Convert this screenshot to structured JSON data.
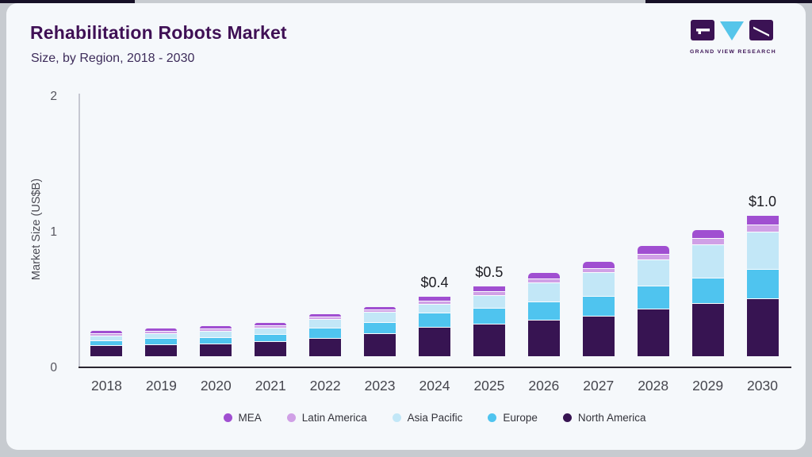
{
  "header": {
    "title": "Rehabilitation Robots Market",
    "subtitle": "Size, by Region, 2018 - 2030",
    "logo": {
      "text": "GRAND VIEW RESEARCH",
      "purple": "#3b1254",
      "cyan": "#56c5ea"
    }
  },
  "chart_data": {
    "type": "bar",
    "stacked": true,
    "title": "Rehabilitation Robots Market",
    "subtitle": "Size, by Region, 2018 - 2030",
    "xlabel": "",
    "ylabel": "Market Size (US$B)",
    "ylim": [
      0,
      2
    ],
    "yticks": [
      0,
      1,
      2
    ],
    "grid": false,
    "legend_position": "bottom",
    "units": "US$B",
    "categories": [
      "2018",
      "2019",
      "2020",
      "2021",
      "2022",
      "2023",
      "2024",
      "2025",
      "2026",
      "2027",
      "2028",
      "2029",
      "2030"
    ],
    "series": [
      {
        "name": "MEA",
        "color": "#a04fd1",
        "values": [
          0.01,
          0.009,
          0.009,
          0.01,
          0.01,
          0.014,
          0.028,
          0.035,
          0.039,
          0.049,
          0.059,
          0.056,
          0.066
        ]
      },
      {
        "name": "Latin America",
        "color": "#d0a0e6",
        "values": [
          0.01,
          0.012,
          0.012,
          0.013,
          0.014,
          0.022,
          0.024,
          0.027,
          0.027,
          0.029,
          0.039,
          0.047,
          0.051
        ]
      },
      {
        "name": "Asia Pacific",
        "color": "#c2e7f7",
        "values": [
          0.03,
          0.035,
          0.047,
          0.047,
          0.065,
          0.075,
          0.065,
          0.094,
          0.143,
          0.176,
          0.196,
          0.243,
          0.278
        ]
      },
      {
        "name": "Europe",
        "color": "#4fc4ef",
        "values": [
          0.04,
          0.042,
          0.047,
          0.055,
          0.078,
          0.08,
          0.108,
          0.118,
          0.133,
          0.143,
          0.171,
          0.192,
          0.212
        ]
      },
      {
        "name": "North America",
        "color": "#371452",
        "values": [
          0.08,
          0.09,
          0.095,
          0.11,
          0.133,
          0.17,
          0.215,
          0.24,
          0.27,
          0.3,
          0.35,
          0.39,
          0.43
        ]
      }
    ],
    "bar_labels": {
      "2024": "$0.4",
      "2025": "$0.5",
      "2030": "$1.0"
    }
  },
  "colors": {
    "card_background": "#f5f8fb",
    "frame": "#c7cbd0",
    "title_text": "#3f1055",
    "subtitle_text": "#3d2c5a",
    "axis_text": "#55555e",
    "x_axis_line": "#2a2630",
    "y_axis_line": "#c6c8d2",
    "value_label_text": "#1c1c22"
  }
}
